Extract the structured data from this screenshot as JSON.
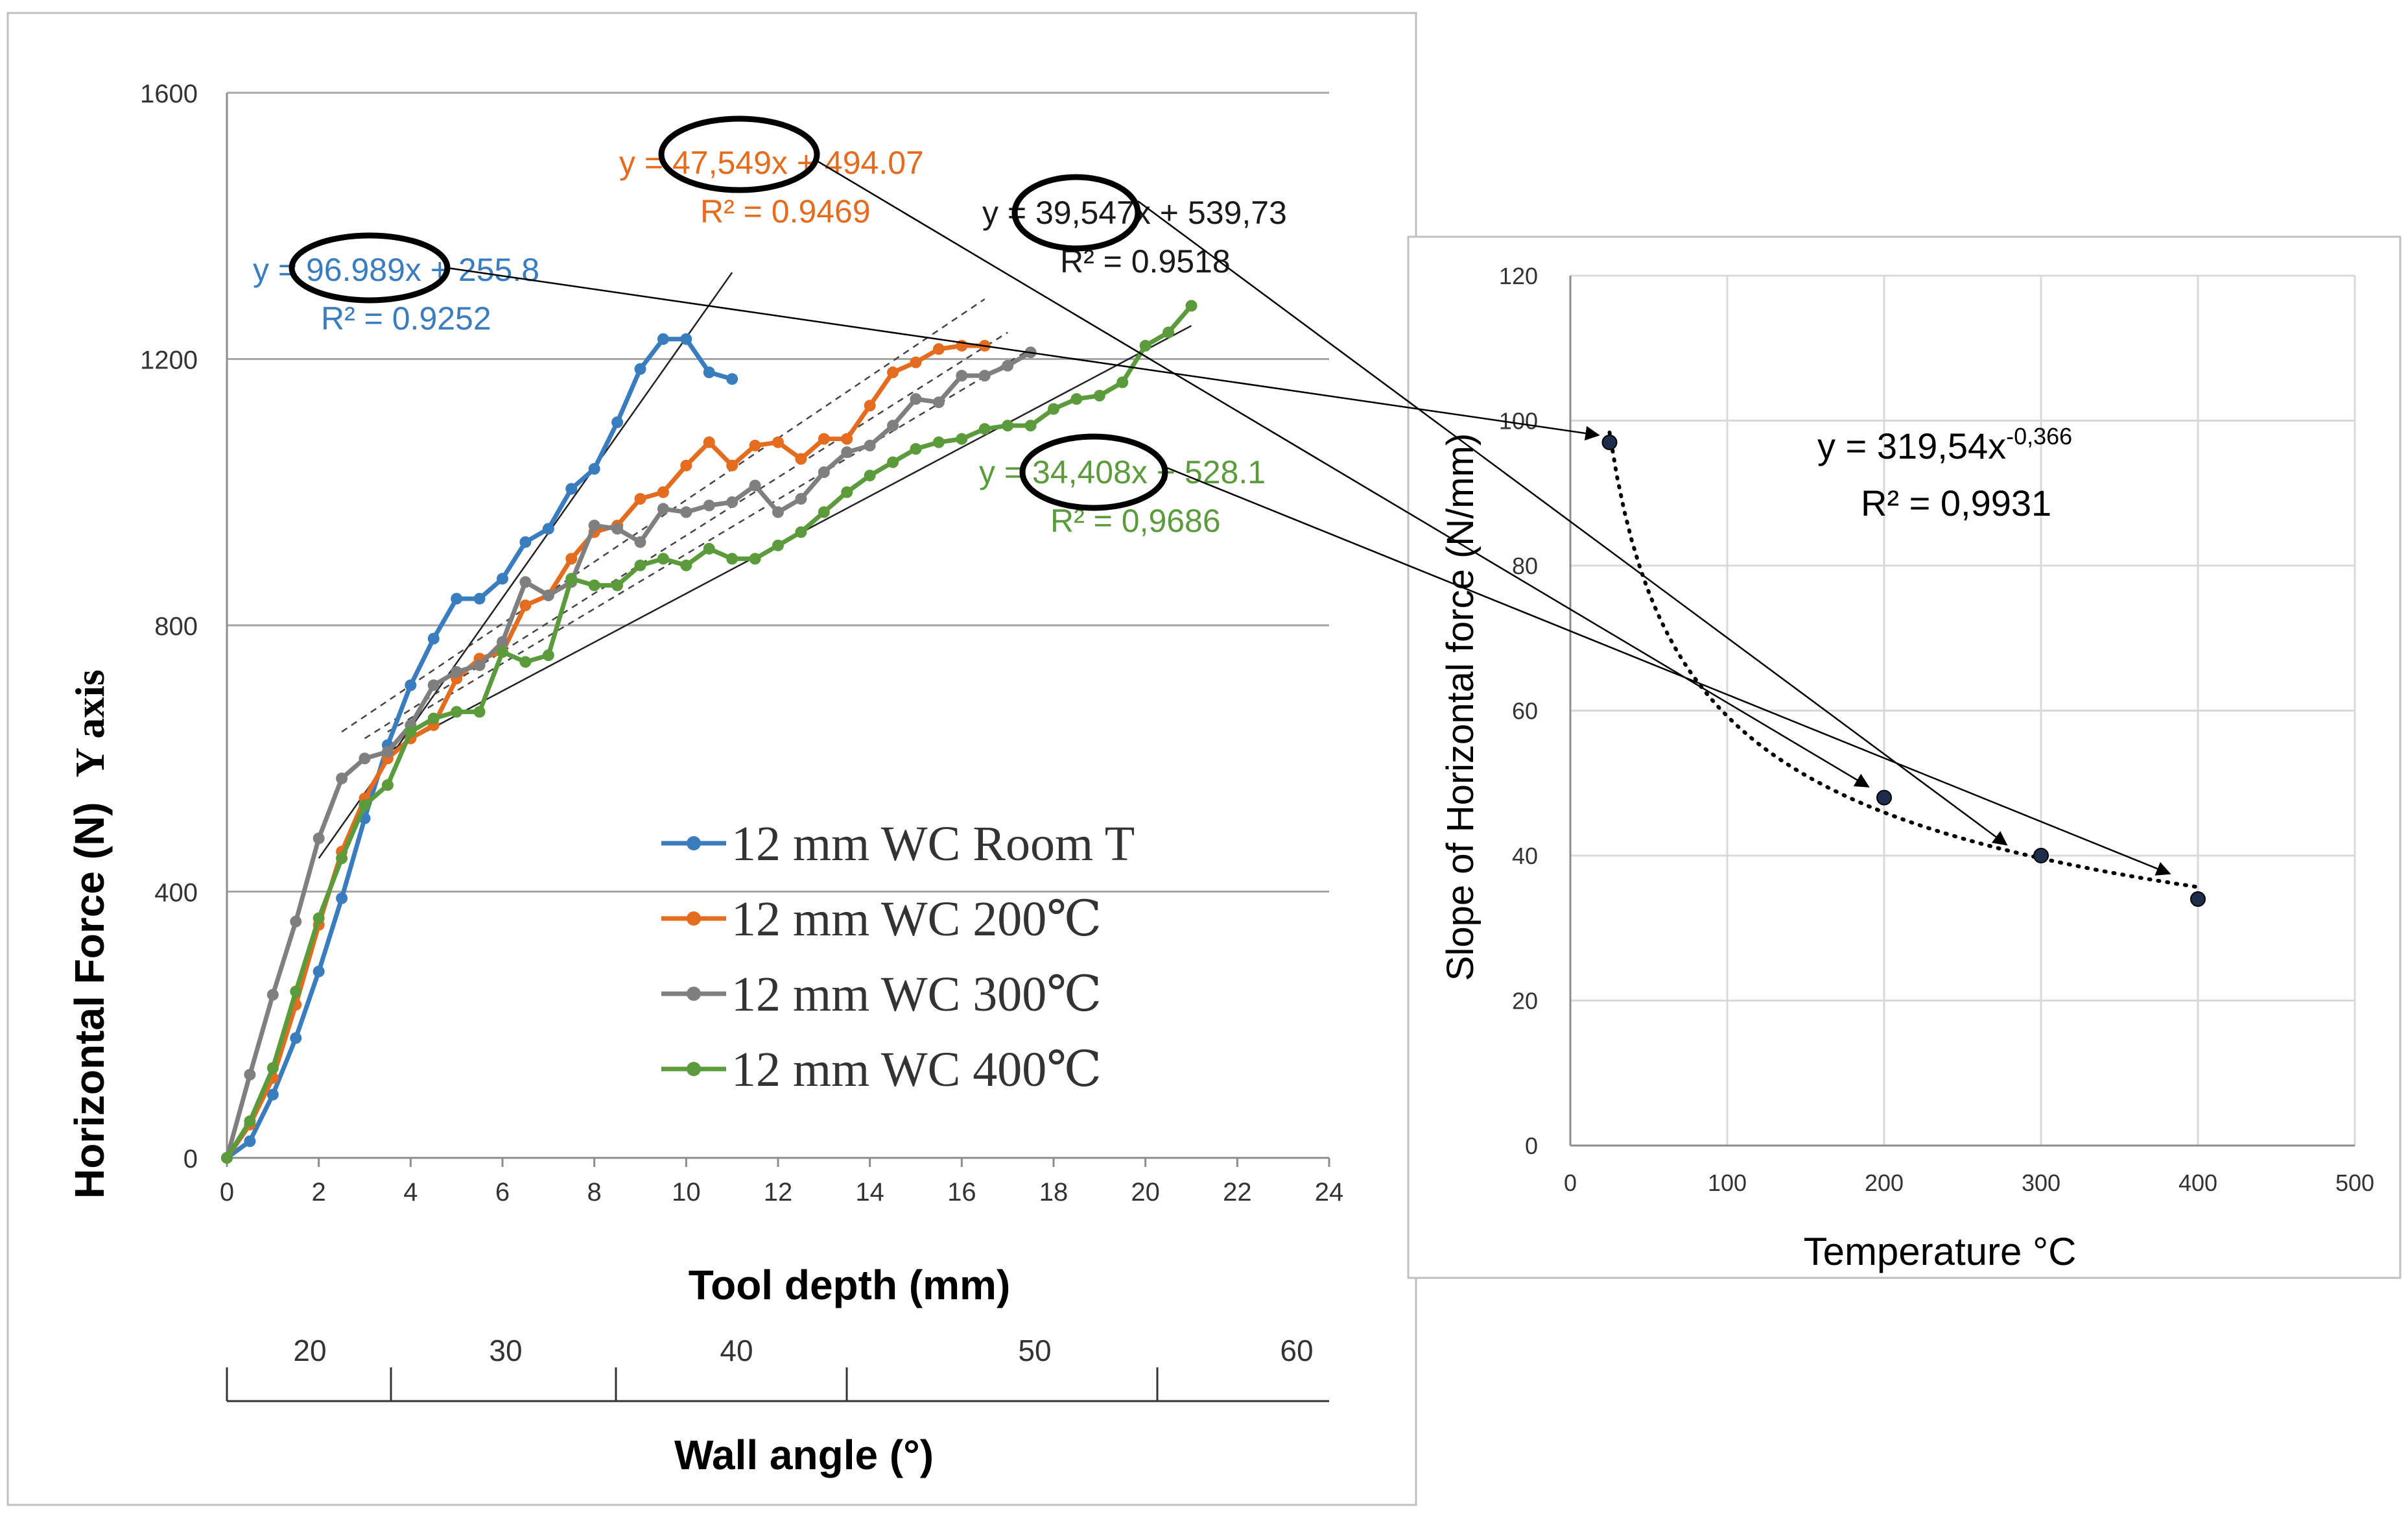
{
  "chart_data": [
    {
      "id": "left",
      "type": "line",
      "title": "",
      "xlabel": "Tool depth (mm)",
      "ylabel": "Horizontal Force (N)",
      "ylabel_suffix": "Y axis",
      "xlim": [
        0,
        24
      ],
      "ylim": [
        0,
        1600
      ],
      "xticks": [
        0,
        2,
        4,
        6,
        8,
        10,
        12,
        14,
        16,
        18,
        20,
        22,
        24
      ],
      "yticks": [
        0,
        400,
        800,
        1200,
        1600
      ],
      "grid": "horizontal",
      "secondary_axis": {
        "label": "Wall angle (°)",
        "tick_labels": [
          "20",
          "30",
          "40",
          "50",
          "60"
        ]
      },
      "legend_position": "center-bottom inside plot",
      "series": [
        {
          "name": "12 mm WC Room T",
          "color": "#3a7dbf",
          "x": [
            0,
            0.5,
            1,
            1.5,
            2,
            2.5,
            3,
            3.5,
            4,
            4.5,
            5,
            5.5,
            6,
            6.5,
            7,
            7.5,
            8,
            8.5,
            9,
            9.5,
            10,
            10.5,
            11
          ],
          "y": [
            0,
            25,
            95,
            180,
            280,
            390,
            510,
            620,
            710,
            780,
            840,
            840,
            870,
            925,
            945,
            1005,
            1035,
            1105,
            1185,
            1230,
            1230,
            1180,
            1170
          ]
        },
        {
          "name": "12 mm WC 200℃",
          "color": "#e46c1f",
          "x": [
            0,
            0.5,
            1,
            1.5,
            2,
            2.5,
            3,
            3.5,
            4,
            4.5,
            5,
            5.5,
            6,
            6.5,
            7,
            7.5,
            8,
            8.5,
            9,
            9.5,
            10,
            10.5,
            11,
            11.5,
            12,
            12.5,
            13,
            13.5,
            14,
            14.5,
            15,
            15.5,
            16,
            16.5
          ],
          "y": [
            0,
            50,
            120,
            230,
            350,
            460,
            540,
            600,
            630,
            650,
            720,
            750,
            760,
            830,
            845,
            900,
            940,
            950,
            990,
            1000,
            1040,
            1075,
            1040,
            1070,
            1075,
            1050,
            1080,
            1080,
            1130,
            1180,
            1195,
            1215,
            1220,
            1220
          ]
        },
        {
          "name": "12 mm WC 300℃",
          "color": "#7f7f7f",
          "x": [
            0,
            0.5,
            1,
            1.5,
            2,
            2.5,
            3,
            3.5,
            4,
            4.5,
            5,
            5.5,
            6,
            6.5,
            7,
            7.5,
            8,
            8.5,
            9,
            9.5,
            10,
            10.5,
            11,
            11.5,
            12,
            12.5,
            13,
            13.5,
            14,
            14.5,
            15,
            15.5,
            16,
            16.5,
            17,
            17.5
          ],
          "y": [
            0,
            125,
            245,
            355,
            480,
            570,
            600,
            610,
            650,
            710,
            730,
            740,
            775,
            865,
            845,
            865,
            950,
            945,
            925,
            975,
            970,
            980,
            985,
            1010,
            970,
            990,
            1030,
            1060,
            1070,
            1100,
            1140,
            1135,
            1175,
            1175,
            1190,
            1210
          ]
        },
        {
          "name": "12 mm WC 400℃",
          "color": "#5b9b3c",
          "x": [
            0,
            0.5,
            1,
            1.5,
            2,
            2.5,
            3,
            3.5,
            4,
            4.5,
            5,
            5.5,
            6,
            6.5,
            7,
            7.5,
            8,
            8.5,
            9,
            9.5,
            10,
            10.5,
            11,
            11.5,
            12,
            12.5,
            13,
            13.5,
            14,
            14.5,
            15,
            15.5,
            16,
            16.5,
            17,
            17.5,
            18,
            18.5,
            19,
            19.5,
            20,
            20.5,
            21
          ],
          "y": [
            0,
            55,
            135,
            250,
            360,
            450,
            530,
            560,
            640,
            660,
            670,
            670,
            760,
            745,
            755,
            870,
            860,
            860,
            890,
            900,
            890,
            915,
            900,
            900,
            920,
            940,
            970,
            1000,
            1025,
            1045,
            1065,
            1075,
            1080,
            1095,
            1100,
            1100,
            1125,
            1140,
            1145,
            1165,
            1220,
            1240,
            1280
          ]
        }
      ],
      "annotations": [
        {
          "text": "y = 96.989x + 255.8",
          "r2": "R² = 0.9252",
          "color": "#3a7dbf"
        },
        {
          "text": "y = 47,549x + 494.07",
          "r2": "R² = 0.9469",
          "color": "#e46c1f"
        },
        {
          "text": "y = 39,547x + 539,73",
          "r2": "R² = 0.9518",
          "color": "#1a1a1a"
        },
        {
          "text": "y = 34,408x + 528.1",
          "r2": "R² = 0,9686",
          "color": "#5b9b3c"
        }
      ]
    },
    {
      "id": "right",
      "type": "scatter",
      "title": "",
      "xlabel": "Temperature °C",
      "ylabel": "Slope of  Horizontal force (N/mm)",
      "xlim": [
        0,
        500
      ],
      "ylim": [
        0,
        120
      ],
      "xticks": [
        0,
        100,
        200,
        300,
        400,
        500
      ],
      "yticks": [
        0,
        20,
        40,
        60,
        80,
        100,
        120
      ],
      "grid": "both",
      "series": [
        {
          "name": "Slope",
          "x": [
            25,
            200,
            300,
            400
          ],
          "y": [
            97,
            48,
            40,
            34
          ]
        }
      ],
      "fit": {
        "equation": "y = 319,54x",
        "exponent": "-0,366",
        "r2": "R² = 0,9931",
        "a": 319.54,
        "b": -0.366,
        "x_range": [
          25,
          400
        ]
      }
    }
  ]
}
